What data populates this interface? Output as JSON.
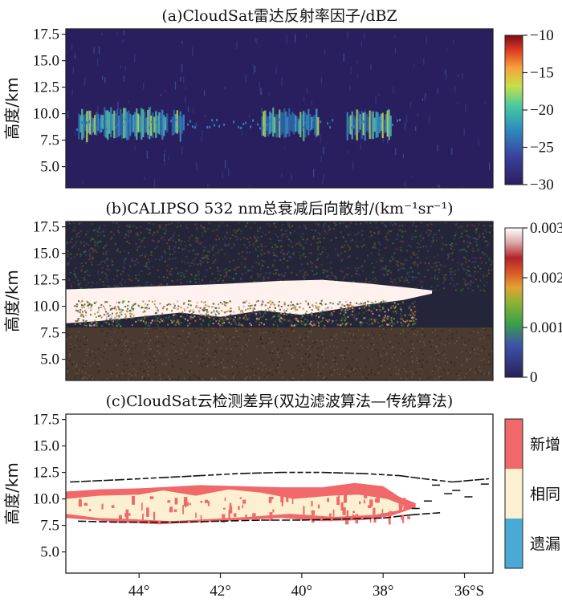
{
  "chart_data": [
    {
      "type": "heatmap",
      "panel": "a",
      "title": "(a)CloudSat雷达反射率因子/dBZ",
      "ylabel": "高度/km",
      "yticks": [
        "17.5",
        "15.0",
        "12.5",
        "10.0",
        "7.5",
        "5.0"
      ],
      "ytick_values": [
        17.5,
        15.0,
        12.5,
        10.0,
        7.5,
        5.0
      ],
      "ylim": [
        3.0,
        18.0
      ],
      "xlim": [
        45.8,
        35.3
      ],
      "colorbar": {
        "ticks": [
          "−10",
          "−15",
          "−20",
          "−25",
          "−30"
        ],
        "tick_values": [
          -10,
          -15,
          -20,
          -25,
          -30
        ],
        "range": [
          -30,
          -10
        ],
        "colormap": "jet-on-navy"
      },
      "cloud_layer_km": [
        7.5,
        10.5
      ],
      "cloud_segments_lat": [
        [
          45.5,
          43.3
        ],
        [
          43.2,
          42.9
        ],
        [
          41.0,
          39.6
        ],
        [
          38.9,
          37.8
        ]
      ],
      "max_dbz": -18
    },
    {
      "type": "heatmap",
      "panel": "b",
      "title": "(b)CALIPSO 532 nm总衰减后向散射/(km⁻¹sr⁻¹)",
      "ylabel": "高度/km",
      "yticks": [
        "17.5",
        "15.0",
        "12.5",
        "10.0",
        "7.5",
        "5.0"
      ],
      "ytick_values": [
        17.5,
        15.0,
        12.5,
        10.0,
        7.5,
        5.0
      ],
      "ylim": [
        3.0,
        18.0
      ],
      "xlim": [
        45.8,
        35.3
      ],
      "colorbar": {
        "ticks": [
          "0.003",
          "0.002",
          "0.001",
          "0"
        ],
        "tick_values": [
          0.003,
          0.002,
          0.001,
          0
        ],
        "range": [
          0,
          0.003
        ],
        "colormap": "navy-green-orange-red-white"
      },
      "cloud_layer_km": [
        8.0,
        11.7
      ],
      "signal_attenuation_below_km": 8.0
    },
    {
      "type": "heatmap",
      "panel": "c",
      "title": "(c)CloudSat云检测差异(双边滤波算法—传统算法)",
      "ylabel": "高度/km",
      "yticks": [
        "17.5",
        "15.0",
        "12.5",
        "10.0",
        "7.5",
        "5.0"
      ],
      "ytick_values": [
        17.5,
        15.0,
        12.5,
        10.0,
        7.5,
        5.0
      ],
      "xticks": [
        "44°",
        "42°",
        "40°",
        "38°",
        "36°S"
      ],
      "xtick_values": [
        44,
        42,
        40,
        38,
        36
      ],
      "ylim": [
        3.0,
        18.0
      ],
      "xlim": [
        45.8,
        35.3
      ],
      "categories": [
        "新增",
        "相同",
        "遗漏"
      ],
      "category_colors": [
        "#f0686a",
        "#fbf0cf",
        "#4aaad6"
      ],
      "same_region_km": [
        7.8,
        10.7
      ],
      "top_boundary_km": [
        11.6,
        12.5
      ],
      "bottom_boundary_km": [
        7.8,
        8.7
      ]
    }
  ],
  "colors": {
    "navy": "#2a1f5e",
    "added": "#f0686a",
    "same": "#fbf0cf",
    "missed": "#4aaad6",
    "calipso_bottom": "#4a3a30",
    "calipso_cloud": "#fff1ee"
  }
}
